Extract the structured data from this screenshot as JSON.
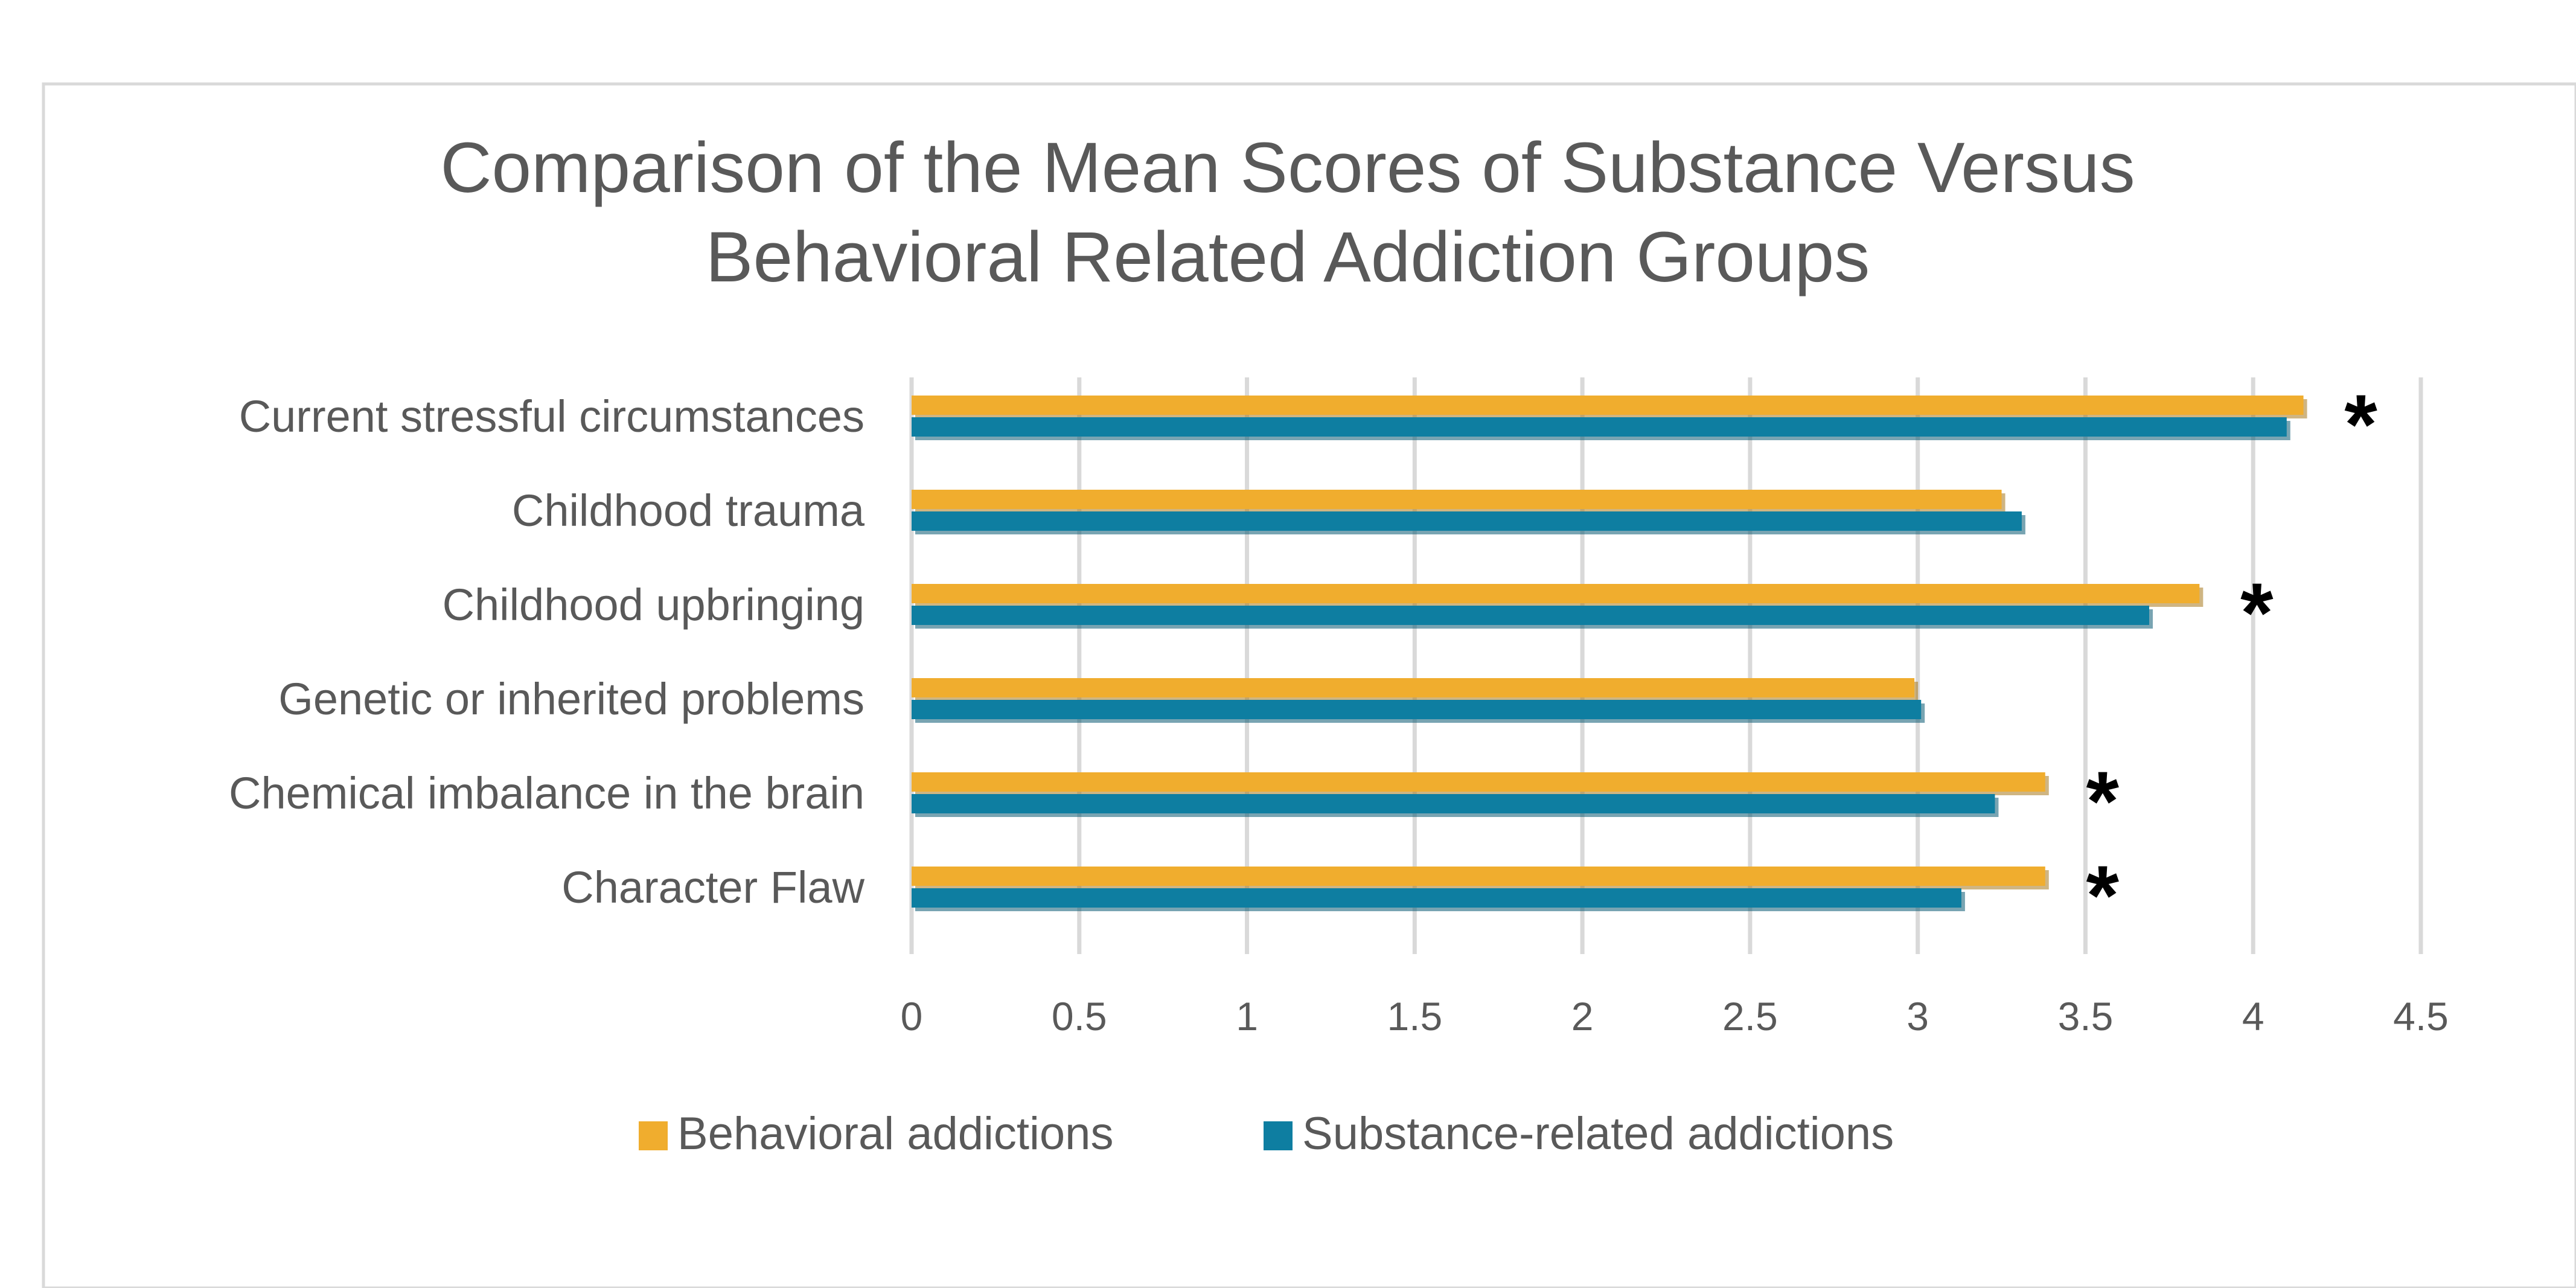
{
  "chart_data": {
    "type": "bar",
    "orientation": "horizontal",
    "title": "Comparison of the Mean Scores of Substance Versus Behavioral Related Addiction Groups",
    "title_lines": [
      "Comparison of the Mean Scores of Substance Versus",
      "Behavioral Related Addiction Groups"
    ],
    "categories": [
      "Current stressful circumstances",
      "Childhood trauma",
      "Childhood upbringing",
      "Genetic or inherited problems",
      "Chemical imbalance in the brain",
      "Character Flaw"
    ],
    "series": [
      {
        "name": "Behavioral addictions",
        "color": "#f0ad2e",
        "values": [
          4.15,
          3.25,
          3.84,
          2.99,
          3.38,
          3.38
        ]
      },
      {
        "name": "Substance-related addictions",
        "color": "#0e7ea1",
        "values": [
          4.1,
          3.31,
          3.69,
          3.01,
          3.23,
          3.13
        ]
      }
    ],
    "significance_markers": [
      "*",
      "",
      "*",
      "",
      "*",
      "*"
    ],
    "xlim": [
      0,
      4.5
    ],
    "xticks": [
      "0",
      "0.5",
      "1",
      "1.5",
      "2",
      "2.5",
      "3",
      "3.5",
      "4",
      "4.5"
    ],
    "grid": true,
    "legend_position": "bottom",
    "xlabel": "",
    "ylabel": ""
  }
}
